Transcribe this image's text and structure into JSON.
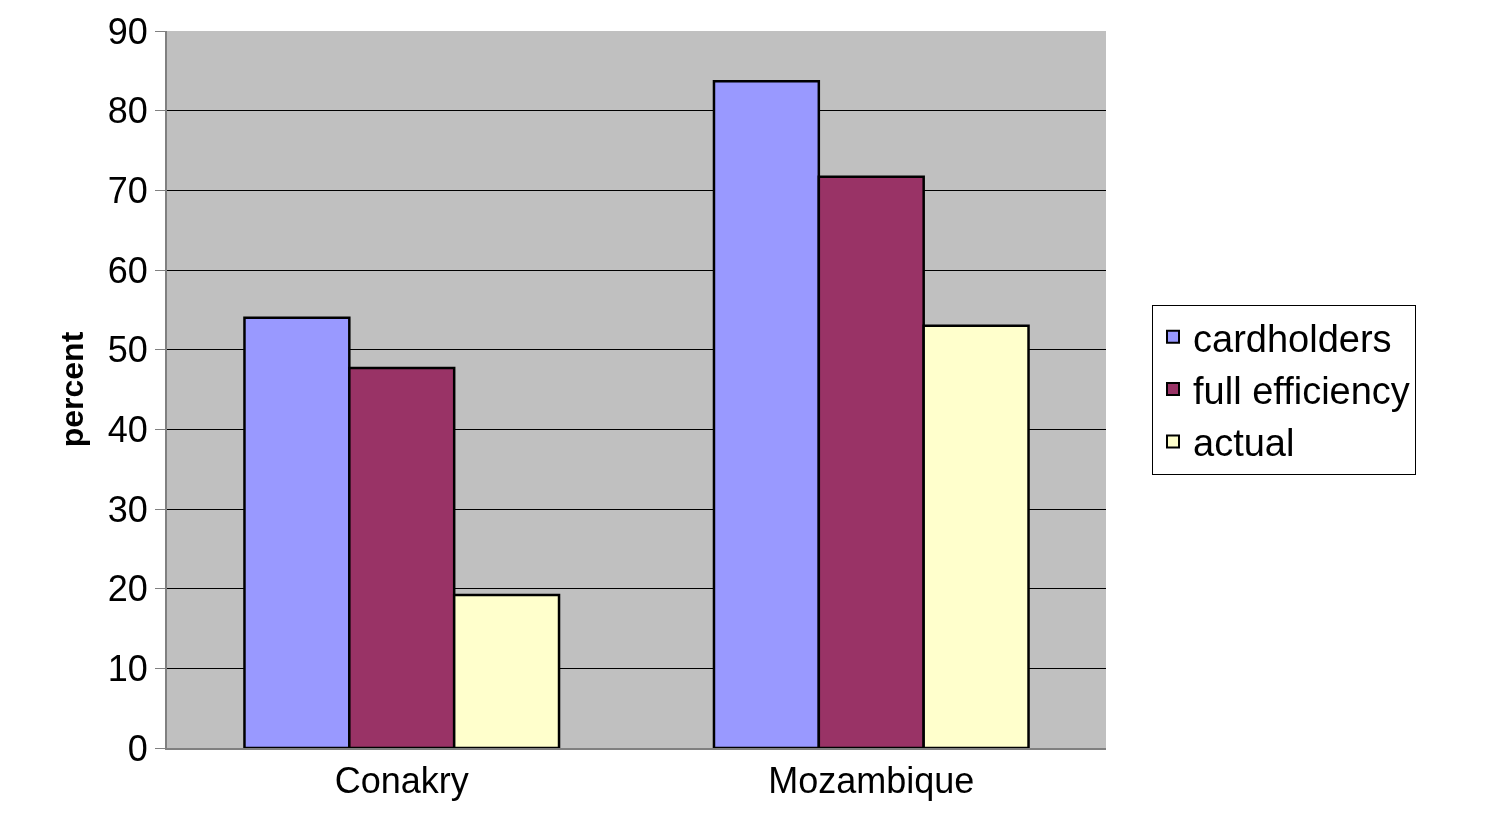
{
  "chart_data": {
    "type": "bar",
    "ylabel": "percent",
    "categories": [
      "Conakry",
      "Mozambique"
    ],
    "series": [
      {
        "name": "cardholders",
        "color": "#9999ff",
        "values": [
          54,
          83.7
        ]
      },
      {
        "name": "full efficiency",
        "color": "#993366",
        "values": [
          47.7,
          71.7
        ]
      },
      {
        "name": "actual",
        "color": "#ffffcc",
        "values": [
          19.2,
          53
        ]
      }
    ],
    "ylim": [
      0,
      90
    ],
    "yticks": [
      0,
      10,
      20,
      30,
      40,
      50,
      60,
      70,
      80,
      90
    ],
    "grid": "y",
    "legend": "right"
  }
}
